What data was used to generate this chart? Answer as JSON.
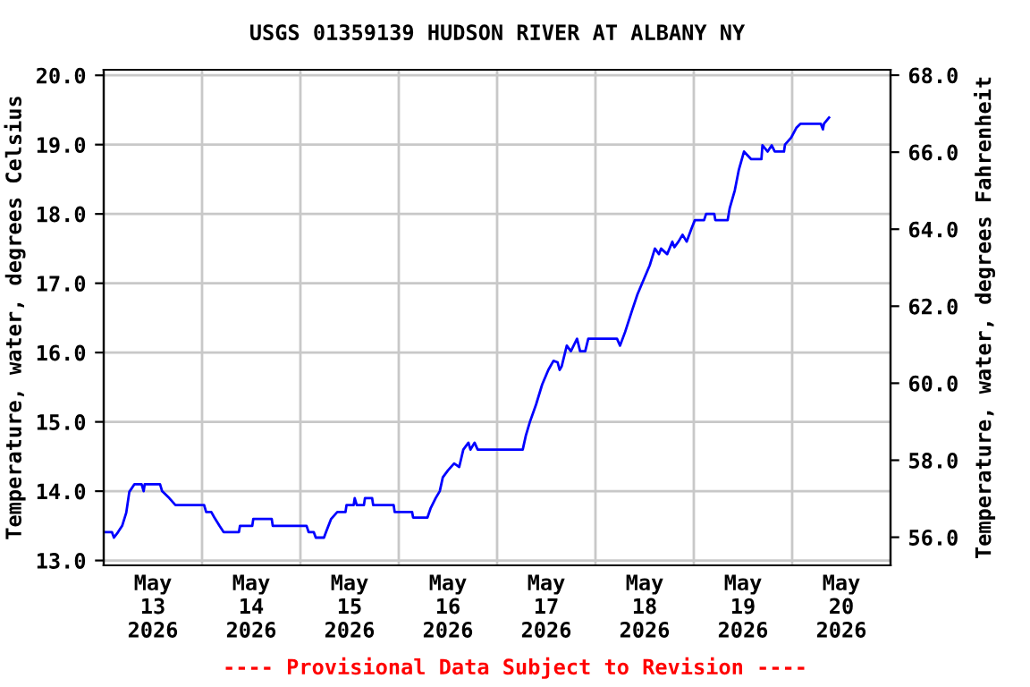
{
  "chart_data": {
    "type": "line",
    "title": "USGS 01359139 HUDSON RIVER AT ALBANY NY",
    "ylabel": "Temperature, water, degrees Celsius",
    "y2label": "Temperature, water, degrees Fahrenheit",
    "annotations": [
      "---- Provisional Data Subject to Revision ----"
    ],
    "grid": true,
    "legend": false,
    "marker": "none",
    "line_style": "solid",
    "xlim": [
      "2026-05-13T00:00",
      "2026-05-21T00:00"
    ],
    "xticks": [
      {
        "value": "2026-05-13T12:00",
        "label": "May\n13\n2026"
      },
      {
        "value": "2026-05-14T12:00",
        "label": "May\n14\n2026"
      },
      {
        "value": "2026-05-15T12:00",
        "label": "May\n15\n2026"
      },
      {
        "value": "2026-05-16T12:00",
        "label": "May\n16\n2026"
      },
      {
        "value": "2026-05-17T12:00",
        "label": "May\n17\n2026"
      },
      {
        "value": "2026-05-18T12:00",
        "label": "May\n18\n2026"
      },
      {
        "value": "2026-05-19T12:00",
        "label": "May\n19\n2026"
      },
      {
        "value": "2026-05-20T12:00",
        "label": "May\n20\n2026"
      },
      {
        "value": "2026-05-14T00:00",
        "label": null
      },
      {
        "value": "2026-05-15T00:00",
        "label": null
      },
      {
        "value": "2026-05-16T00:00",
        "label": null
      },
      {
        "value": "2026-05-17T00:00",
        "label": null
      },
      {
        "value": "2026-05-18T00:00",
        "label": null
      },
      {
        "value": "2026-05-19T00:00",
        "label": null
      },
      {
        "value": "2026-05-20T00:00",
        "label": null
      }
    ],
    "ylim": [
      12.93,
      20.08
    ],
    "yticks": [
      {
        "value": 13,
        "label": "13.0"
      },
      {
        "value": 14,
        "label": "14.0"
      },
      {
        "value": 15,
        "label": "15.0"
      },
      {
        "value": 16,
        "label": "16.0"
      },
      {
        "value": 17,
        "label": "17.0"
      },
      {
        "value": 18,
        "label": "18.0"
      },
      {
        "value": 19,
        "label": "19.0"
      },
      {
        "value": 20,
        "label": "20.0"
      }
    ],
    "y2lim": [
      55.27,
      68.14
    ],
    "y2ticks": [
      {
        "value": 56,
        "label": "56.0"
      },
      {
        "value": 58,
        "label": "58.0"
      },
      {
        "value": 60,
        "label": "60.0"
      },
      {
        "value": 62,
        "label": "62.0"
      },
      {
        "value": 64,
        "label": "64.0"
      },
      {
        "value": 66,
        "label": "66.0"
      },
      {
        "value": 68,
        "label": "68.0"
      }
    ],
    "x": [
      "2026-05-13T00:00",
      "2026-05-13T02:00",
      "2026-05-13T02:30",
      "2026-05-13T03:30",
      "2026-05-13T04:30",
      "2026-05-13T05:30",
      "2026-05-13T06:15",
      "2026-05-13T07:30",
      "2026-05-13T09:15",
      "2026-05-13T09:45",
      "2026-05-13T10:00",
      "2026-05-13T13:45",
      "2026-05-13T14:15",
      "2026-05-13T16:00",
      "2026-05-13T17:30",
      "2026-05-14T00:30",
      "2026-05-14T01:00",
      "2026-05-14T02:15",
      "2026-05-14T03:00",
      "2026-05-14T04:15",
      "2026-05-14T05:15",
      "2026-05-14T09:00",
      "2026-05-14T09:15",
      "2026-05-14T12:15",
      "2026-05-14T12:30",
      "2026-05-14T17:00",
      "2026-05-14T17:15",
      "2026-05-15T01:30",
      "2026-05-15T02:00",
      "2026-05-15T03:15",
      "2026-05-15T03:45",
      "2026-05-15T05:45",
      "2026-05-15T06:15",
      "2026-05-15T07:30",
      "2026-05-15T09:00",
      "2026-05-15T11:00",
      "2026-05-15T11:15",
      "2026-05-15T13:00",
      "2026-05-15T13:15",
      "2026-05-15T13:45",
      "2026-05-15T15:30",
      "2026-05-15T15:45",
      "2026-05-15T17:30",
      "2026-05-15T17:45",
      "2026-05-15T22:45",
      "2026-05-15T23:00",
      "2026-05-16T03:15",
      "2026-05-16T03:30",
      "2026-05-16T07:00",
      "2026-05-16T07:45",
      "2026-05-16T09:00",
      "2026-05-16T10:00",
      "2026-05-16T10:45",
      "2026-05-16T12:00",
      "2026-05-16T13:30",
      "2026-05-16T14:45",
      "2026-05-16T15:45",
      "2026-05-16T17:00",
      "2026-05-16T17:30",
      "2026-05-16T18:30",
      "2026-05-16T19:15",
      "2026-05-17T06:15",
      "2026-05-17T07:00",
      "2026-05-17T08:00",
      "2026-05-17T09:30",
      "2026-05-17T11:00",
      "2026-05-17T12:30",
      "2026-05-17T13:45",
      "2026-05-17T14:45",
      "2026-05-17T15:15",
      "2026-05-17T15:45",
      "2026-05-17T17:00",
      "2026-05-17T18:00",
      "2026-05-17T19:30",
      "2026-05-17T20:15",
      "2026-05-17T21:30",
      "2026-05-17T22:15",
      "2026-05-18T05:15",
      "2026-05-18T06:00",
      "2026-05-18T07:15",
      "2026-05-18T09:00",
      "2026-05-18T10:15",
      "2026-05-18T11:45",
      "2026-05-18T13:15",
      "2026-05-18T14:30",
      "2026-05-18T15:30",
      "2026-05-18T16:00",
      "2026-05-18T17:30",
      "2026-05-18T18:45",
      "2026-05-18T19:15",
      "2026-05-18T20:15",
      "2026-05-18T21:15",
      "2026-05-18T22:15",
      "2026-05-18T23:30",
      "2026-05-19T00:15",
      "2026-05-19T02:30",
      "2026-05-19T03:00",
      "2026-05-19T05:00",
      "2026-05-19T05:15",
      "2026-05-19T08:15",
      "2026-05-19T08:45",
      "2026-05-19T10:00",
      "2026-05-19T11:00",
      "2026-05-19T12:15",
      "2026-05-19T14:00",
      "2026-05-19T16:30",
      "2026-05-19T16:45",
      "2026-05-19T18:00",
      "2026-05-19T19:00",
      "2026-05-19T19:45",
      "2026-05-19T22:00",
      "2026-05-19T22:15",
      "2026-05-19T23:45",
      "2026-05-20T01:00",
      "2026-05-20T02:00",
      "2026-05-20T07:00",
      "2026-05-20T07:30",
      "2026-05-20T07:45",
      "2026-05-20T09:00"
    ],
    "series": [
      {
        "color": "#0000ff",
        "values": [
          13.41,
          13.41,
          13.33,
          13.41,
          13.5,
          13.69,
          13.99,
          14.1,
          14.1,
          14.0,
          14.1,
          14.1,
          14.0,
          13.9,
          13.8,
          13.8,
          13.7,
          13.7,
          13.62,
          13.5,
          13.41,
          13.41,
          13.5,
          13.5,
          13.6,
          13.6,
          13.5,
          13.5,
          13.41,
          13.41,
          13.33,
          13.33,
          13.41,
          13.6,
          13.7,
          13.7,
          13.8,
          13.8,
          13.9,
          13.8,
          13.8,
          13.9,
          13.9,
          13.8,
          13.8,
          13.7,
          13.7,
          13.62,
          13.62,
          13.75,
          13.9,
          14.0,
          14.2,
          14.3,
          14.4,
          14.35,
          14.6,
          14.7,
          14.6,
          14.7,
          14.6,
          14.6,
          14.8,
          15.0,
          15.25,
          15.54,
          15.75,
          15.88,
          15.86,
          15.75,
          15.8,
          16.1,
          16.02,
          16.2,
          16.02,
          16.02,
          16.2,
          16.2,
          16.1,
          16.3,
          16.62,
          16.84,
          17.05,
          17.26,
          17.5,
          17.42,
          17.5,
          17.42,
          17.6,
          17.52,
          17.6,
          17.7,
          17.6,
          17.8,
          17.91,
          17.91,
          18.0,
          18.0,
          17.91,
          17.91,
          18.08,
          18.34,
          18.64,
          18.9,
          18.79,
          18.79,
          18.99,
          18.9,
          18.99,
          18.9,
          18.9,
          19.0,
          19.1,
          19.24,
          19.3,
          19.3,
          19.22,
          19.3,
          19.39
        ]
      }
    ]
  }
}
